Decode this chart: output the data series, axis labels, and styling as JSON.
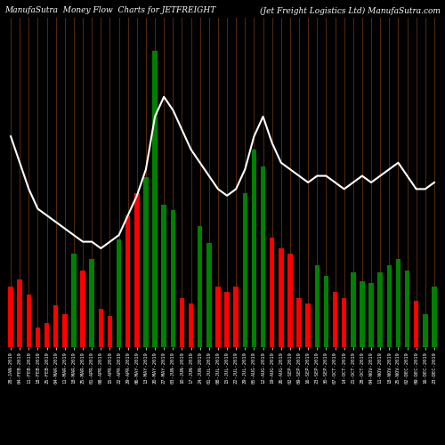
{
  "title_left": "ManufaSutra  Money Flow  Charts for JETFREIGHT",
  "title_right": "(Jet Freight Logistics Ltd) ManufaSutra.com",
  "background_color": "#000000",
  "categories": [
    "28-JAN-2019",
    "04-FEB-2019",
    "11-FEB-2019",
    "18-FEB-2019",
    "25-FEB-2019",
    "04-MAR-2019",
    "11-MAR-2019",
    "18-MAR-2019",
    "25-MAR-2019",
    "01-APR-2019",
    "08-APR-2019",
    "15-APR-2019",
    "22-APR-2019",
    "29-APR-2019",
    "06-MAY-2019",
    "13-MAY-2019",
    "20-MAY-2019",
    "27-MAY-2019",
    "03-JUN-2019",
    "10-JUN-2019",
    "17-JUN-2019",
    "24-JUN-2019",
    "01-JUL-2019",
    "08-JUL-2019",
    "15-JUL-2019",
    "22-JUL-2019",
    "29-JUL-2019",
    "05-AUG-2019",
    "12-AUG-2019",
    "19-AUG-2019",
    "26-AUG-2019",
    "02-SEP-2019",
    "09-SEP-2019",
    "16-SEP-2019",
    "23-SEP-2019",
    "30-SEP-2019",
    "07-OCT-2019",
    "14-OCT-2019",
    "21-OCT-2019",
    "28-OCT-2019",
    "04-NOV-2019",
    "11-NOV-2019",
    "18-NOV-2019",
    "25-NOV-2019",
    "02-DEC-2019",
    "09-DEC-2019",
    "16-DEC-2019",
    "23-DEC-2019"
  ],
  "bar_values": [
    55,
    62,
    48,
    18,
    22,
    38,
    30,
    85,
    70,
    80,
    35,
    28,
    98,
    120,
    140,
    155,
    270,
    130,
    125,
    45,
    40,
    110,
    95,
    55,
    50,
    55,
    140,
    180,
    165,
    100,
    90,
    85,
    45,
    40,
    75,
    65,
    50,
    45,
    68,
    60,
    58,
    68,
    75,
    80,
    70,
    42,
    30,
    55
  ],
  "bar_colors": [
    "red",
    "red",
    "red",
    "red",
    "red",
    "red",
    "red",
    "green",
    "red",
    "green",
    "red",
    "red",
    "green",
    "red",
    "red",
    "green",
    "green",
    "green",
    "green",
    "red",
    "red",
    "green",
    "green",
    "red",
    "red",
    "red",
    "green",
    "green",
    "green",
    "red",
    "red",
    "red",
    "red",
    "red",
    "green",
    "green",
    "red",
    "red",
    "green",
    "green",
    "green",
    "green",
    "green",
    "green",
    "green",
    "red",
    "green",
    "green"
  ],
  "line_values": [
    72,
    68,
    64,
    61,
    60,
    59,
    58,
    57,
    56,
    56,
    55,
    56,
    57,
    60,
    63,
    67,
    75,
    78,
    76,
    73,
    70,
    68,
    66,
    64,
    63,
    64,
    67,
    72,
    75,
    71,
    68,
    67,
    66,
    65,
    66,
    66,
    65,
    64,
    65,
    66,
    65,
    66,
    67,
    68,
    66,
    64,
    64,
    65
  ],
  "bar_ylim": [
    0,
    300
  ],
  "line_ylim": [
    40,
    90
  ],
  "text_color": "#ffffff",
  "line_color": "#ffffff",
  "title_fontsize": 6.5,
  "label_fontsize": 4.0,
  "bar_width": 0.55,
  "grid_color": "#8B4513"
}
